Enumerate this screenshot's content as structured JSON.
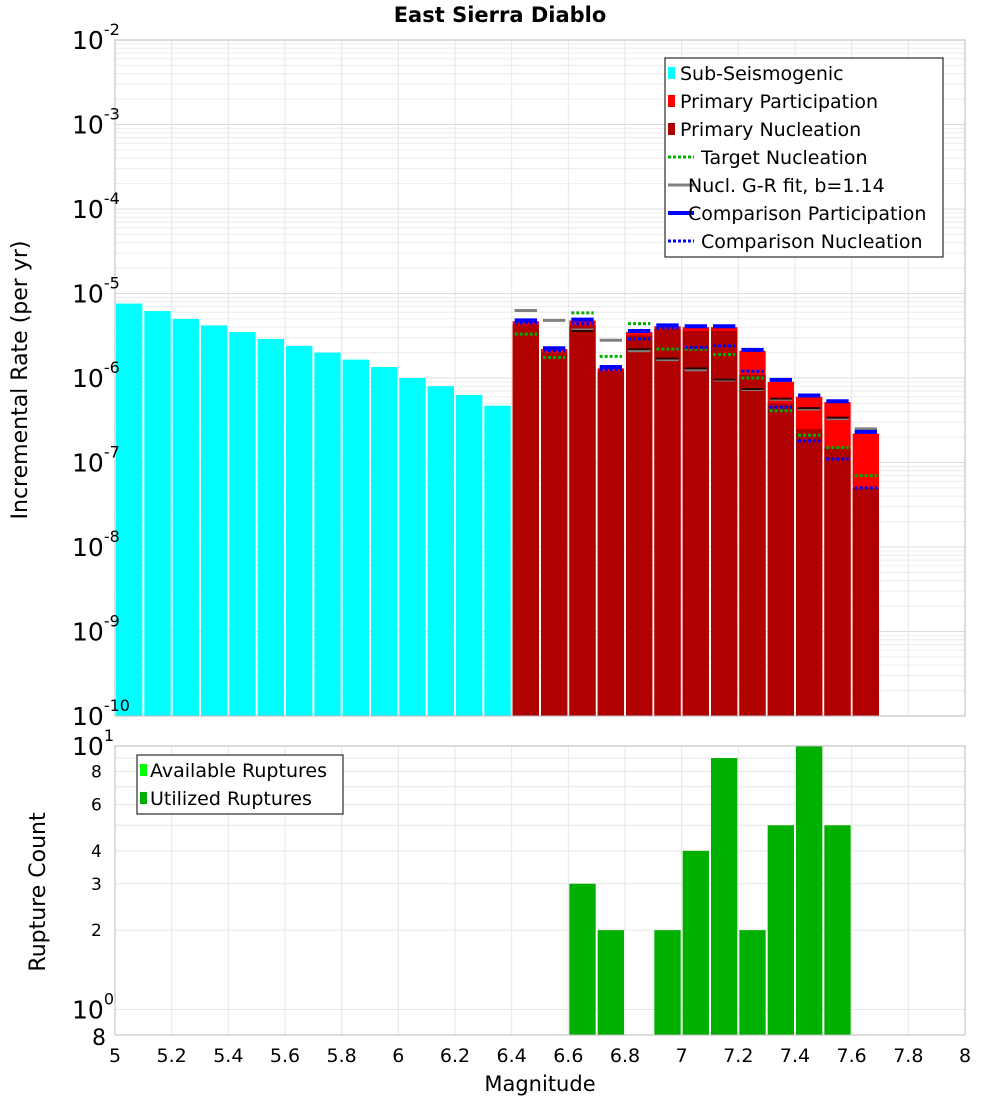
{
  "chart_data": [
    {
      "type": "bar",
      "title": "East Sierra Diablo",
      "ylabel": "Incremental Rate (per yr)",
      "yscale": "log",
      "ylim": [
        1e-10,
        0.01
      ],
      "xlim": [
        5,
        8
      ],
      "bin_width": 0.1,
      "y_tick_labels": [
        {
          "exp": -10,
          "base": "10",
          "sup": "-10"
        },
        {
          "exp": -9,
          "base": "10",
          "sup": "-9"
        },
        {
          "exp": -8,
          "base": "10",
          "sup": "-8"
        },
        {
          "exp": -7,
          "base": "10",
          "sup": "-7"
        },
        {
          "exp": -6,
          "base": "10",
          "sup": "-6"
        },
        {
          "exp": -5,
          "base": "10",
          "sup": "-5"
        },
        {
          "exp": -4,
          "base": "10",
          "sup": "-4"
        },
        {
          "exp": -3,
          "base": "10",
          "sup": "-3"
        },
        {
          "exp": -2,
          "base": "10",
          "sup": "-2"
        }
      ],
      "legend_position": "top-right",
      "legend": [
        {
          "label": "Sub-Seismogenic",
          "style": "box",
          "color": "#00ffff"
        },
        {
          "label": "Primary Participation",
          "style": "box",
          "color": "#ff0000"
        },
        {
          "label": "Primary Nucleation",
          "style": "box",
          "color": "#b00000"
        },
        {
          "label": "Target Nucleation",
          "style": "dotted",
          "color": "#00b000"
        },
        {
          "label": "Nucl. G-R fit, b=1.14",
          "style": "solid",
          "color": "#808080"
        },
        {
          "label": "Comparison Participation",
          "style": "solid-thick",
          "color": "#0000ff"
        },
        {
          "label": "Comparison Nucleation",
          "style": "dotted",
          "color": "#0000ff"
        }
      ],
      "series": [
        {
          "name": "Sub-Seismogenic",
          "color": "#00ffff",
          "x": [
            5.05,
            5.15,
            5.25,
            5.35,
            5.45,
            5.55,
            5.65,
            5.75,
            5.85,
            5.95,
            6.05,
            6.15,
            6.25,
            6.35
          ],
          "values": [
            7.6e-06,
            6.2e-06,
            5e-06,
            4.2e-06,
            3.5e-06,
            2.9e-06,
            2.4e-06,
            2e-06,
            1.65e-06,
            1.35e-06,
            1e-06,
            8e-07,
            6.3e-07,
            4.7e-07
          ]
        },
        {
          "name": "Primary Participation",
          "color": "#ff0000",
          "x": [
            6.45,
            6.55,
            6.65,
            6.75,
            6.85,
            6.95,
            7.05,
            7.15,
            7.25,
            7.35,
            7.45,
            7.55,
            7.65
          ],
          "values": [
            4.7e-06,
            2.2e-06,
            4.8e-06,
            1.3e-06,
            3.5e-06,
            4.1e-06,
            4e-06,
            4e-06,
            2.1e-06,
            9e-07,
            6e-07,
            5.2e-07,
            2.2e-07
          ]
        },
        {
          "name": "Primary Nucleation",
          "color": "#b00000",
          "x": [
            6.45,
            6.55,
            6.65,
            6.75,
            6.85,
            6.95,
            7.05,
            7.15,
            7.25,
            7.35,
            7.45,
            7.55,
            7.65
          ],
          "values": [
            4.3e-06,
            2e-06,
            4.2e-06,
            1.2e-06,
            3.2e-06,
            3.8e-06,
            3.6e-06,
            3.6e-06,
            1.1e-06,
            5e-07,
            2.5e-07,
            1.5e-07,
            5e-08
          ]
        },
        {
          "name": "Target Nucleation",
          "color": "#00b000",
          "x": [
            6.45,
            6.55,
            6.65,
            6.75,
            6.85,
            6.95,
            7.05,
            7.15,
            7.25,
            7.35,
            7.45,
            7.55,
            7.65
          ],
          "values": [
            3.3e-06,
            1.75e-06,
            5.9e-06,
            1.8e-06,
            4.4e-06,
            2.2e-06,
            2.2e-06,
            1.9e-06,
            1e-06,
            4.1e-07,
            2.1e-07,
            1.5e-07,
            7e-08
          ]
        },
        {
          "name": "Nucl. G-R fit, b=1.14",
          "color": "#808080",
          "x": [
            6.45,
            6.55,
            6.65,
            6.75,
            6.85,
            6.95,
            7.05,
            7.15,
            7.25,
            7.35,
            7.45,
            7.55,
            7.65
          ],
          "values": [
            6.3e-06,
            4.8e-06,
            3.7e-06,
            2.8e-06,
            2.1e-06,
            1.65e-06,
            1.25e-06,
            9.5e-07,
            7.3e-07,
            5.6e-07,
            4.3e-07,
            3.3e-07,
            2.5e-07
          ]
        },
        {
          "name": "Nucl. G-R fit (dark)",
          "color": "#300000",
          "x": [
            6.65,
            6.85,
            6.95,
            7.05,
            7.15,
            7.25,
            7.35,
            7.45,
            7.55
          ],
          "values": [
            3.6e-06,
            2.2e-06,
            1.7e-06,
            1.3e-06,
            9.6e-07,
            7.4e-07,
            5.7e-07,
            4.4e-07,
            3.4e-07
          ]
        },
        {
          "name": "Comparison Participation",
          "color": "#0000ff",
          "x": [
            6.45,
            6.55,
            6.65,
            6.75,
            6.85,
            6.95,
            7.05,
            7.15,
            7.25,
            7.35,
            7.45,
            7.55,
            7.65
          ],
          "values": [
            4.8e-06,
            2.25e-06,
            4.9e-06,
            1.35e-06,
            3.6e-06,
            4.2e-06,
            4.1e-06,
            4.1e-06,
            2.15e-06,
            9.5e-07,
            6.2e-07,
            5.3e-07,
            2.3e-07
          ]
        },
        {
          "name": "Comparison Nucleation",
          "color": "#0000ff",
          "x": [
            6.45,
            6.55,
            6.65,
            6.75,
            6.85,
            6.95,
            7.05,
            7.15,
            7.25,
            7.35,
            7.45,
            7.55,
            7.65
          ],
          "values": [
            4.5e-06,
            2.1e-06,
            4.4e-06,
            1.25e-06,
            2.9e-06,
            3.9e-06,
            2.3e-06,
            2.4e-06,
            1.2e-06,
            4.5e-07,
            1.8e-07,
            1.1e-07,
            5e-08
          ]
        }
      ]
    },
    {
      "type": "bar",
      "xlabel": "Magnitude",
      "ylabel": "Rupture Count",
      "yscale": "log",
      "ylim": [
        0.8,
        10
      ],
      "xlim": [
        5,
        8
      ],
      "bin_width": 0.1,
      "x_tick_labels": [
        "5",
        "5.2",
        "5.4",
        "5.6",
        "5.8",
        "6",
        "6.2",
        "6.4",
        "6.6",
        "6.8",
        "7",
        "7.2",
        "7.4",
        "7.6",
        "7.8",
        "8"
      ],
      "y_tick_labels": [
        {
          "value": 0.8,
          "label": "8",
          "sup": ""
        },
        {
          "value": 1,
          "label": "10",
          "sup": "0"
        },
        {
          "value": 2,
          "label": "2",
          "sup": ""
        },
        {
          "value": 3,
          "label": "3",
          "sup": ""
        },
        {
          "value": 4,
          "label": "4",
          "sup": ""
        },
        {
          "value": 6,
          "label": "6",
          "sup": ""
        },
        {
          "value": 8,
          "label": "8",
          "sup": ""
        },
        {
          "value": 10,
          "label": "10",
          "sup": "1"
        }
      ],
      "legend_position": "top-left",
      "legend": [
        {
          "label": "Available Ruptures",
          "style": "box",
          "color": "#00ff00"
        },
        {
          "label": "Utilized Ruptures",
          "style": "box",
          "color": "#00b000"
        }
      ],
      "series": [
        {
          "name": "Utilized Ruptures",
          "color": "#00b000",
          "x": [
            6.65,
            6.75,
            6.95,
            7.05,
            7.15,
            7.25,
            7.35,
            7.45,
            7.55
          ],
          "values": [
            3,
            2,
            2,
            4,
            9,
            2,
            5,
            10,
            5
          ]
        }
      ]
    }
  ]
}
